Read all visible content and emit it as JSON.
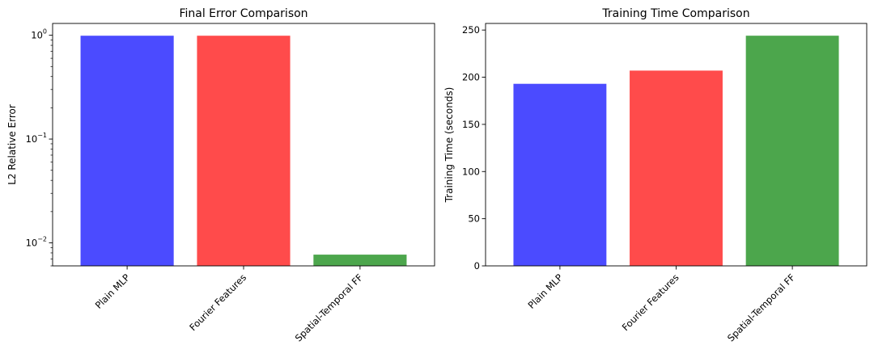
{
  "chart_data": [
    {
      "type": "bar",
      "title": "Final Error Comparison",
      "xlabel": "",
      "ylabel": "L2 Relative Error",
      "yscale": "log",
      "ylim": [
        0.006,
        1.3
      ],
      "yticks": [
        {
          "value": 0.01,
          "base": "10",
          "exp": "−2"
        },
        {
          "value": 0.1,
          "base": "10",
          "exp": "−1"
        },
        {
          "value": 1,
          "base": "10",
          "exp": "0"
        }
      ],
      "categories": [
        "Plain MLP",
        "Fourier Features",
        "Spatial-Temporal FF"
      ],
      "values": [
        0.99,
        0.99,
        0.0077
      ],
      "colors": [
        "#4b4bff",
        "#ff4b4b",
        "#4ca64c"
      ],
      "grid": false
    },
    {
      "type": "bar",
      "title": "Training Time Comparison",
      "xlabel": "",
      "ylabel": "Training Time (seconds)",
      "yscale": "linear",
      "ylim": [
        0,
        257
      ],
      "yticks": [
        0,
        50,
        100,
        150,
        200,
        250
      ],
      "categories": [
        "Plain MLP",
        "Fourier Features",
        "Spatial-Temporal FF"
      ],
      "values": [
        193,
        207,
        244
      ],
      "colors": [
        "#4b4bff",
        "#ff4b4b",
        "#4ca64c"
      ],
      "grid": false
    }
  ]
}
